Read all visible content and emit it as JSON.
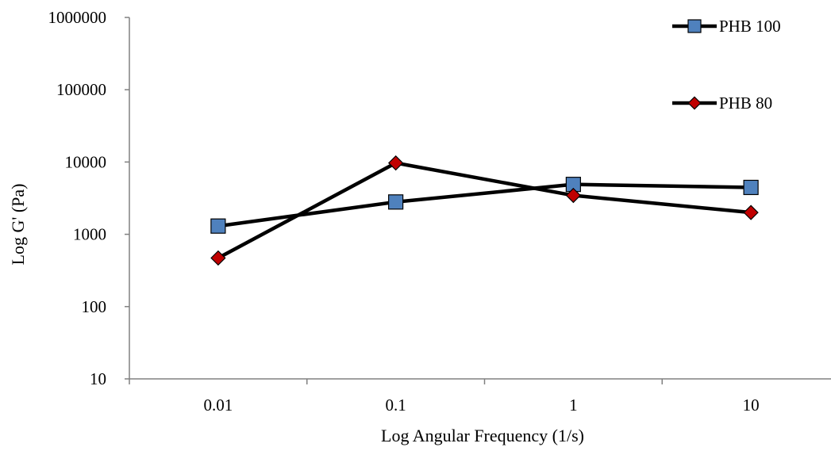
{
  "chart_data": {
    "type": "line",
    "title": "",
    "xlabel": "Log Angular Frequency (1/s)",
    "ylabel": "Log G' (Pa)",
    "categories": [
      "0.01",
      "0.1",
      "1",
      "10"
    ],
    "y_scale": "log",
    "ylim": [
      10,
      1000000
    ],
    "y_ticks": [
      "10",
      "100",
      "1000",
      "10000",
      "100000",
      "1000000"
    ],
    "grid": false,
    "legend_position": "top-right",
    "series": [
      {
        "name": "PHB 100",
        "values": [
          1300,
          2800,
          4900,
          4450
        ],
        "marker": "square",
        "marker_color": "#4f81bd",
        "line_color": "#000000"
      },
      {
        "name": "PHB 80",
        "values": [
          470,
          9700,
          3450,
          2000
        ],
        "marker": "diamond",
        "marker_color": "#c00000",
        "line_color": "#000000"
      }
    ]
  }
}
